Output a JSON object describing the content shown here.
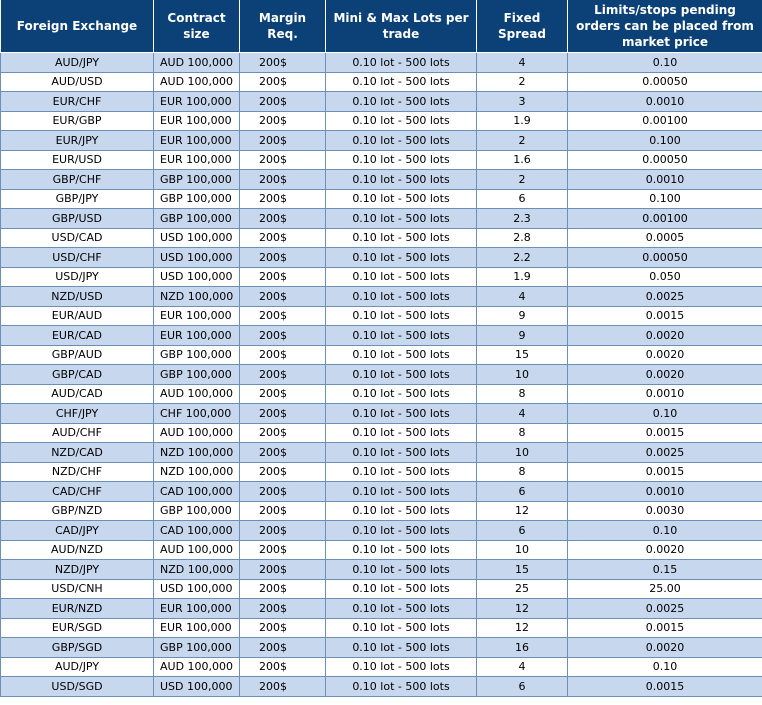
{
  "headers": {
    "pair": "Foreign Exchange",
    "contract": "Contract size",
    "margin": "Margin Req.",
    "lots": "Mini & Max Lots per trade",
    "spread": "Fixed Spread",
    "limits": "Limits/stops pending orders can be placed from market price"
  },
  "rows": [
    {
      "pair": "AUD/JPY",
      "contract": "AUD 100,000",
      "margin": "200$",
      "lots": "0.10 lot - 500 lots",
      "spread": "4",
      "limits": "0.10"
    },
    {
      "pair": "AUD/USD",
      "contract": "AUD 100,000",
      "margin": "200$",
      "lots": "0.10 lot - 500 lots",
      "spread": "2",
      "limits": "0.00050"
    },
    {
      "pair": "EUR/CHF",
      "contract": "EUR 100,000",
      "margin": "200$",
      "lots": "0.10 lot - 500 lots",
      "spread": "3",
      "limits": "0.0010"
    },
    {
      "pair": "EUR/GBP",
      "contract": "EUR 100,000",
      "margin": "200$",
      "lots": "0.10 lot - 500 lots",
      "spread": "1.9",
      "limits": "0.00100"
    },
    {
      "pair": "EUR/JPY",
      "contract": "EUR 100,000",
      "margin": "200$",
      "lots": "0.10 lot - 500 lots",
      "spread": "2",
      "limits": "0.100"
    },
    {
      "pair": "EUR/USD",
      "contract": "EUR 100,000",
      "margin": "200$",
      "lots": "0.10 lot - 500 lots",
      "spread": "1.6",
      "limits": "0.00050"
    },
    {
      "pair": "GBP/CHF",
      "contract": "GBP 100,000",
      "margin": "200$",
      "lots": "0.10 lot - 500 lots",
      "spread": "2",
      "limits": "0.0010"
    },
    {
      "pair": "GBP/JPY",
      "contract": "GBP 100,000",
      "margin": "200$",
      "lots": "0.10 lot - 500 lots",
      "spread": "6",
      "limits": "0.100"
    },
    {
      "pair": "GBP/USD",
      "contract": "GBP 100,000",
      "margin": "200$",
      "lots": "0.10 lot - 500 lots",
      "spread": "2.3",
      "limits": "0.00100"
    },
    {
      "pair": "USD/CAD",
      "contract": "USD 100,000",
      "margin": "200$",
      "lots": "0.10 lot - 500 lots",
      "spread": "2.8",
      "limits": "0.0005"
    },
    {
      "pair": "USD/CHF",
      "contract": "USD 100,000",
      "margin": "200$",
      "lots": "0.10 lot - 500 lots",
      "spread": "2.2",
      "limits": "0.00050"
    },
    {
      "pair": "USD/JPY",
      "contract": "USD 100,000",
      "margin": "200$",
      "lots": "0.10 lot - 500 lots",
      "spread": "1.9",
      "limits": "0.050"
    },
    {
      "pair": "NZD/USD",
      "contract": "NZD 100,000",
      "margin": "200$",
      "lots": "0.10 lot - 500 lots",
      "spread": "4",
      "limits": "0.0025"
    },
    {
      "pair": "EUR/AUD",
      "contract": "EUR 100,000",
      "margin": "200$",
      "lots": "0.10 lot - 500 lots",
      "spread": "9",
      "limits": "0.0015"
    },
    {
      "pair": "EUR/CAD",
      "contract": "EUR 100,000",
      "margin": "200$",
      "lots": "0.10 lot - 500 lots",
      "spread": "9",
      "limits": "0.0020"
    },
    {
      "pair": "GBP/AUD",
      "contract": "GBP 100,000",
      "margin": "200$",
      "lots": "0.10 lot - 500 lots",
      "spread": "15",
      "limits": "0.0020"
    },
    {
      "pair": "GBP/CAD",
      "contract": "GBP 100,000",
      "margin": "200$",
      "lots": "0.10 lot - 500 lots",
      "spread": "10",
      "limits": "0.0020"
    },
    {
      "pair": "AUD/CAD",
      "contract": "AUD 100,000",
      "margin": "200$",
      "lots": "0.10 lot - 500 lots",
      "spread": "8",
      "limits": "0.0010"
    },
    {
      "pair": "CHF/JPY",
      "contract": "CHF 100,000",
      "margin": "200$",
      "lots": "0.10 lot - 500 lots",
      "spread": "4",
      "limits": "0.10"
    },
    {
      "pair": "AUD/CHF",
      "contract": "AUD 100,000",
      "margin": "200$",
      "lots": "0.10 lot - 500 lots",
      "spread": "8",
      "limits": "0.0015"
    },
    {
      "pair": "NZD/CAD",
      "contract": "NZD 100,000",
      "margin": "200$",
      "lots": "0.10 lot - 500 lots",
      "spread": "10",
      "limits": "0.0025"
    },
    {
      "pair": "NZD/CHF",
      "contract": "NZD 100,000",
      "margin": "200$",
      "lots": "0.10 lot - 500 lots",
      "spread": "8",
      "limits": "0.0015"
    },
    {
      "pair": "CAD/CHF",
      "contract": "CAD 100,000",
      "margin": "200$",
      "lots": "0.10 lot - 500 lots",
      "spread": "6",
      "limits": "0.0010"
    },
    {
      "pair": "GBP/NZD",
      "contract": "GBP 100,000",
      "margin": "200$",
      "lots": "0.10 lot - 500 lots",
      "spread": "12",
      "limits": "0.0030"
    },
    {
      "pair": "CAD/JPY",
      "contract": "CAD 100,000",
      "margin": "200$",
      "lots": "0.10 lot - 500 lots",
      "spread": "6",
      "limits": "0.10"
    },
    {
      "pair": "AUD/NZD",
      "contract": "AUD 100,000",
      "margin": "200$",
      "lots": "0.10 lot - 500 lots",
      "spread": "10",
      "limits": "0.0020"
    },
    {
      "pair": "NZD/JPY",
      "contract": "NZD 100,000",
      "margin": "200$",
      "lots": "0.10 lot - 500 lots",
      "spread": "15",
      "limits": "0.15"
    },
    {
      "pair": "USD/CNH",
      "contract": "USD 100,000",
      "margin": "200$",
      "lots": "0.10 lot - 500 lots",
      "spread": "25",
      "limits": "25.00"
    },
    {
      "pair": "EUR/NZD",
      "contract": "EUR 100,000",
      "margin": "200$",
      "lots": "0.10 lot - 500 lots",
      "spread": "12",
      "limits": "0.0025"
    },
    {
      "pair": "EUR/SGD",
      "contract": "EUR 100,000",
      "margin": "200$",
      "lots": "0.10 lot - 500 lots",
      "spread": "12",
      "limits": "0.0015"
    },
    {
      "pair": "GBP/SGD",
      "contract": "GBP 100,000",
      "margin": "200$",
      "lots": "0.10 lot - 500 lots",
      "spread": "16",
      "limits": "0.0020"
    },
    {
      "pair": "AUD/JPY",
      "contract": "AUD 100,000",
      "margin": "200$",
      "lots": "0.10 lot - 500 lots",
      "spread": "4",
      "limits": "0.10"
    },
    {
      "pair": "USD/SGD",
      "contract": "USD 100,000",
      "margin": "200$",
      "lots": "0.10 lot - 500 lots",
      "spread": "6",
      "limits": "0.0015"
    }
  ]
}
